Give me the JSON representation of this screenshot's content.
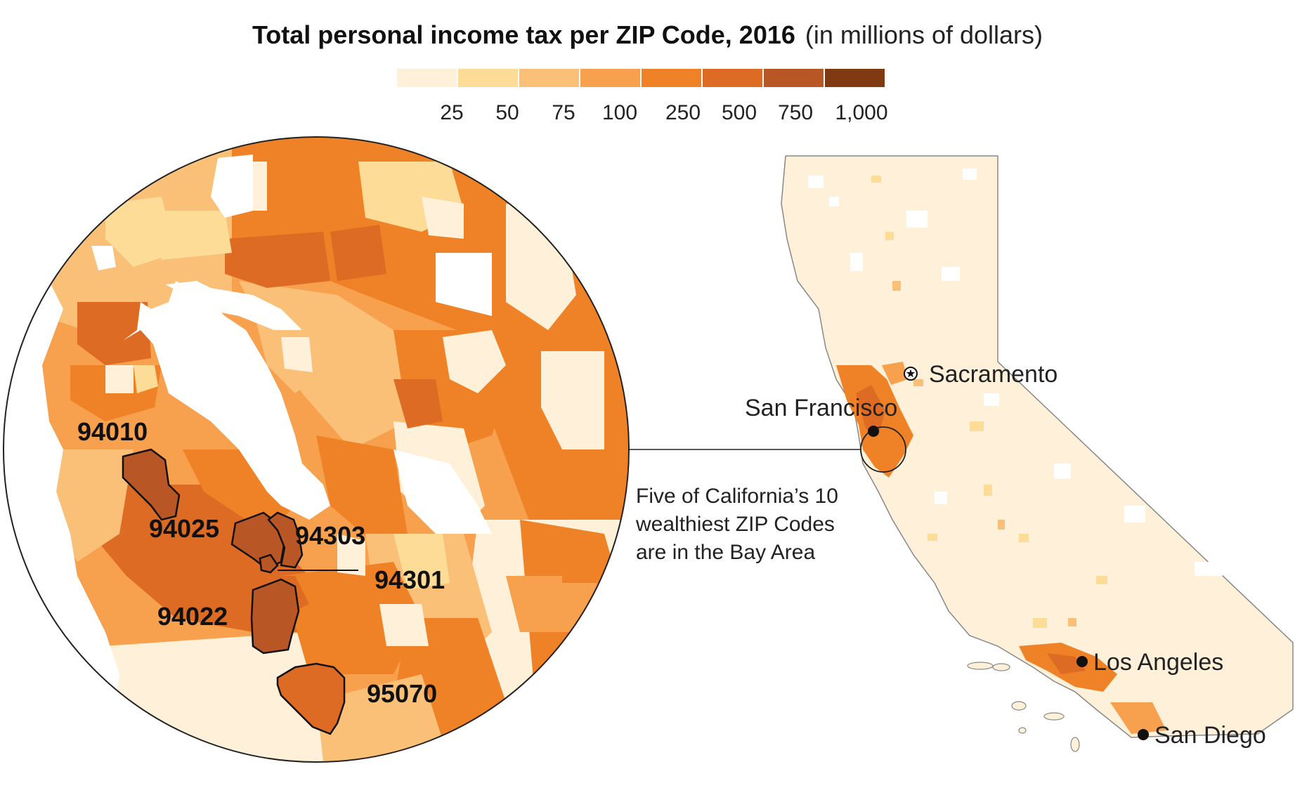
{
  "title": {
    "main": "Total personal income tax per ZIP Code, 2016",
    "unit": "(in millions of dollars)"
  },
  "legend": {
    "colors": [
      "#fef0d9",
      "#fddc97",
      "#fbc078",
      "#f7a04e",
      "#ef8227",
      "#dd6b24",
      "#b85626",
      "#7f3a12"
    ],
    "ticks": [
      "25",
      "50",
      "75",
      "100",
      "250",
      "500",
      "750",
      "1,000"
    ]
  },
  "zip_labels": [
    "94010",
    "94025",
    "94303",
    "94301",
    "94022",
    "95070"
  ],
  "annotation": {
    "line1": "Five of California’s 10",
    "line2": "wealthiest ZIP Codes",
    "line3": "are in the Bay Area"
  },
  "cities": {
    "sacramento": "Sacramento",
    "san_francisco": "San Francisco",
    "los_angeles": "Los Angeles",
    "san_diego": "San Diego"
  }
}
